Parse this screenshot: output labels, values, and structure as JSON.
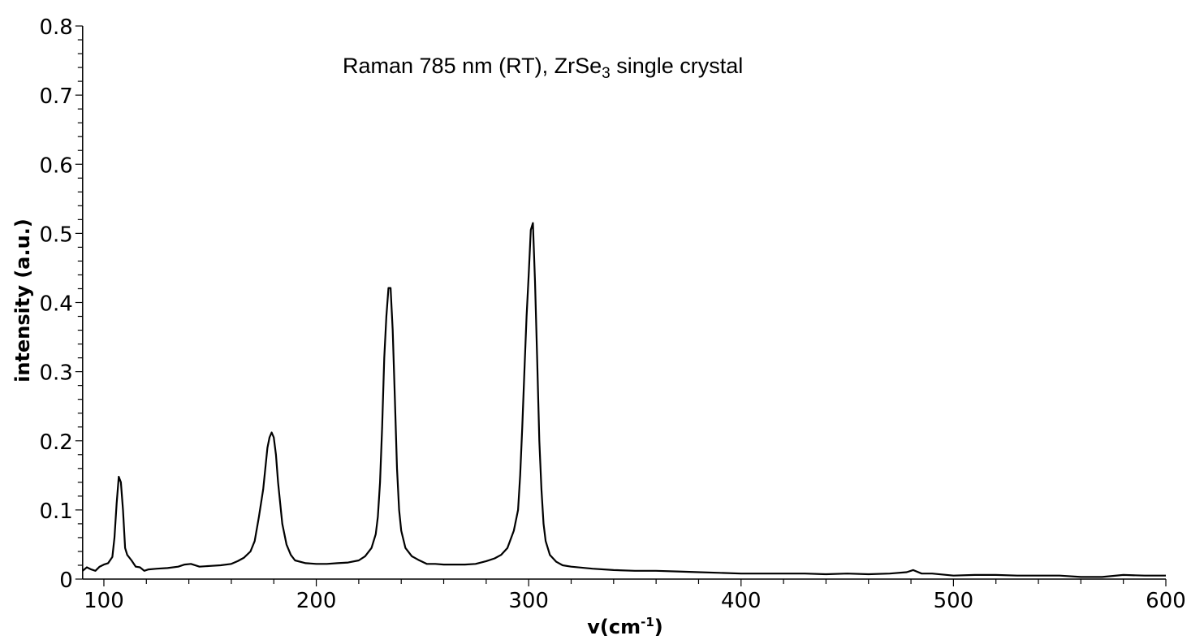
{
  "chart_data": {
    "type": "line",
    "title": "",
    "annotation": {
      "prefix": "Raman 785 nm (RT), ZrSe",
      "subscript": "3",
      "suffix": " single crystal"
    },
    "xlabel": {
      "prefix": "v(cm",
      "superscript": "-1",
      "suffix": ")"
    },
    "ylabel": "intensity (a.u.)",
    "xlim": [
      90,
      600
    ],
    "ylim": [
      0,
      0.8
    ],
    "x_ticks": [
      "100",
      "200",
      "300",
      "400",
      "500",
      "600"
    ],
    "y_ticks": [
      "0",
      "0.1",
      "0.2",
      "0.3",
      "0.4",
      "0.5",
      "0.6",
      "0.7",
      "0.8"
    ],
    "grid": false,
    "line_color": "#000000",
    "series": [
      {
        "x": [
          90,
          92,
          94,
          96,
          98,
          100,
          102,
          104,
          105,
          106,
          107,
          108,
          109,
          110,
          111,
          113,
          115,
          117,
          119,
          121,
          125,
          130,
          135,
          138,
          141,
          145,
          150,
          155,
          160,
          163,
          166,
          169,
          171,
          173,
          175,
          176,
          177,
          178,
          179,
          180,
          181,
          182,
          183,
          184,
          186,
          188,
          190,
          195,
          200,
          205,
          210,
          215,
          220,
          223,
          226,
          228,
          229,
          230,
          231,
          232,
          233,
          234,
          235,
          236,
          237,
          238,
          239,
          240,
          242,
          245,
          248,
          252,
          256,
          260,
          265,
          270,
          275,
          280,
          284,
          287,
          290,
          293,
          295,
          296,
          297,
          298,
          299,
          300,
          301,
          302,
          303,
          304,
          305,
          306,
          307,
          308,
          310,
          313,
          316,
          320,
          330,
          340,
          350,
          360,
          370,
          380,
          390,
          400,
          410,
          420,
          430,
          440,
          450,
          460,
          470,
          478,
          481,
          485,
          490,
          500,
          510,
          520,
          530,
          540,
          550,
          560,
          570,
          580,
          590,
          600
        ],
        "y": [
          0.012,
          0.017,
          0.014,
          0.012,
          0.018,
          0.021,
          0.023,
          0.032,
          0.06,
          0.11,
          0.148,
          0.14,
          0.1,
          0.045,
          0.035,
          0.027,
          0.018,
          0.017,
          0.012,
          0.014,
          0.015,
          0.016,
          0.018,
          0.021,
          0.022,
          0.018,
          0.019,
          0.02,
          0.022,
          0.026,
          0.031,
          0.04,
          0.055,
          0.09,
          0.13,
          0.16,
          0.19,
          0.205,
          0.212,
          0.205,
          0.18,
          0.14,
          0.11,
          0.08,
          0.05,
          0.035,
          0.027,
          0.023,
          0.022,
          0.022,
          0.023,
          0.024,
          0.027,
          0.033,
          0.045,
          0.065,
          0.09,
          0.14,
          0.22,
          0.32,
          0.38,
          0.421,
          0.421,
          0.36,
          0.26,
          0.16,
          0.1,
          0.07,
          0.045,
          0.033,
          0.028,
          0.022,
          0.022,
          0.021,
          0.021,
          0.021,
          0.022,
          0.026,
          0.03,
          0.035,
          0.045,
          0.07,
          0.1,
          0.15,
          0.22,
          0.3,
          0.38,
          0.44,
          0.505,
          0.515,
          0.43,
          0.32,
          0.2,
          0.13,
          0.08,
          0.055,
          0.035,
          0.025,
          0.02,
          0.018,
          0.015,
          0.013,
          0.012,
          0.012,
          0.011,
          0.01,
          0.009,
          0.008,
          0.008,
          0.008,
          0.008,
          0.007,
          0.008,
          0.007,
          0.008,
          0.01,
          0.013,
          0.008,
          0.008,
          0.005,
          0.006,
          0.006,
          0.005,
          0.005,
          0.005,
          0.003,
          0.003,
          0.006,
          0.005,
          0.005
        ]
      }
    ]
  }
}
